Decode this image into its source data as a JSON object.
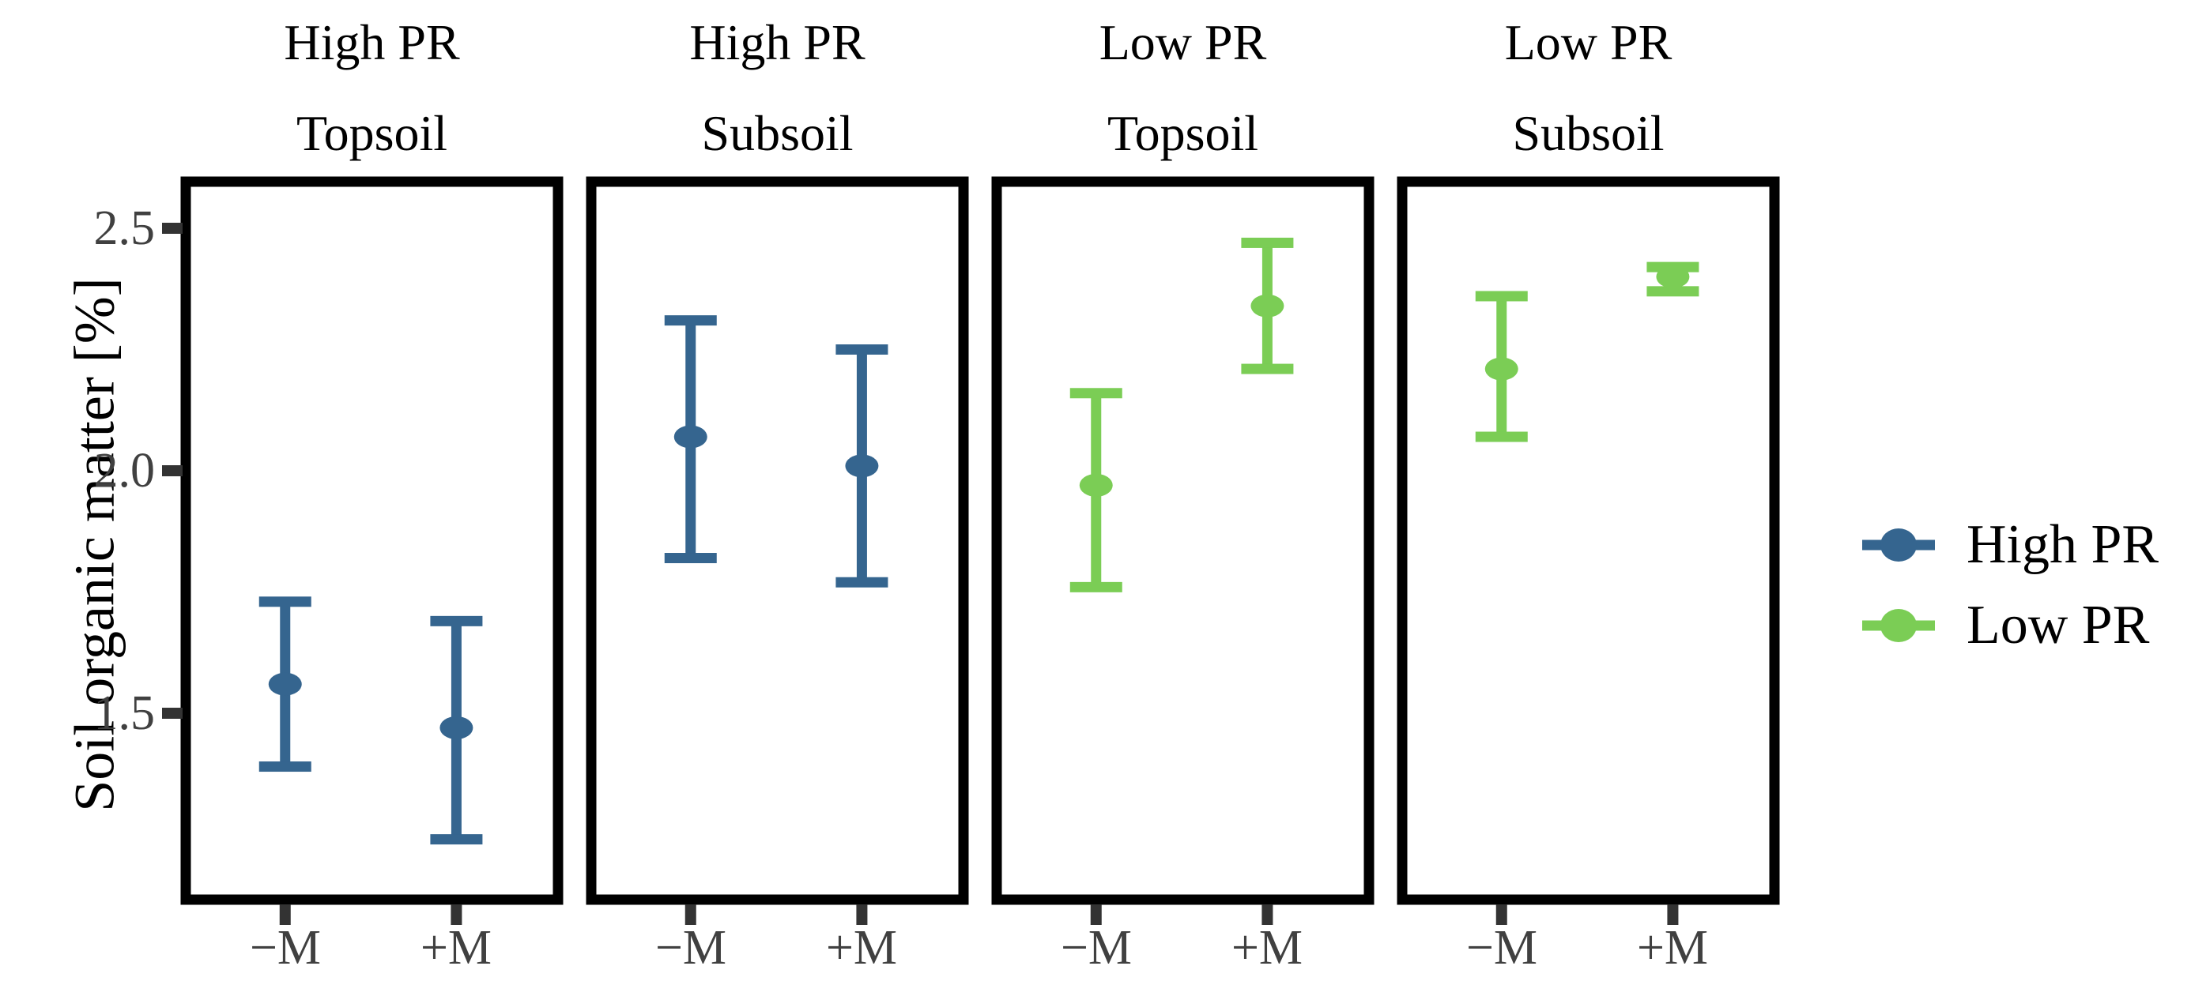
{
  "chart_data": {
    "type": "pointrange",
    "title": "",
    "ylabel": "Soil organic matter [%]",
    "xlabel": "",
    "x_categories": [
      "−M",
      "+M"
    ],
    "y_tick_labels": [
      "2.5",
      "2.0",
      "1.5"
    ],
    "y_tick_values": [
      2.5,
      2.0,
      1.5
    ],
    "ylim": [
      1.11,
      2.6
    ],
    "grid": "off",
    "legend_position": "right",
    "axis_text_color": "#404040",
    "tick_mark_color": "#333333",
    "panel_border_color": "#000000",
    "series_colors": {
      "high_pr": "#35658F",
      "low_pr": "#7BCD55"
    },
    "panels": [
      {
        "id": "high-pr-topsoil",
        "facet_line1": "High PR",
        "facet_line2": "Topsoil",
        "series": "High PR",
        "color": "#35658F",
        "points": [
          {
            "x": "−M",
            "y": 1.56,
            "ymin": 1.39,
            "ymax": 1.73
          },
          {
            "x": "+M",
            "y": 1.47,
            "ymin": 1.24,
            "ymax": 1.69
          }
        ]
      },
      {
        "id": "high-pr-subsoil",
        "facet_line1": "High PR",
        "facet_line2": "Subsoil",
        "series": "High PR",
        "color": "#35658F",
        "points": [
          {
            "x": "−M",
            "y": 2.07,
            "ymin": 1.82,
            "ymax": 2.31
          },
          {
            "x": "+M",
            "y": 2.01,
            "ymin": 1.77,
            "ymax": 2.25
          }
        ]
      },
      {
        "id": "low-pr-topsoil",
        "facet_line1": "Low PR",
        "facet_line2": "Topsoil",
        "series": "Low PR",
        "color": "#7BCD55",
        "points": [
          {
            "x": "−M",
            "y": 1.97,
            "ymin": 1.76,
            "ymax": 2.16
          },
          {
            "x": "+M",
            "y": 2.34,
            "ymin": 2.21,
            "ymax": 2.47
          }
        ]
      },
      {
        "id": "low-pr-subsoil",
        "facet_line1": "Low PR",
        "facet_line2": "Subsoil",
        "series": "Low PR",
        "color": "#7BCD55",
        "points": [
          {
            "x": "−M",
            "y": 2.21,
            "ymin": 2.07,
            "ymax": 2.36
          },
          {
            "x": "+M",
            "y": 2.4,
            "ymin": 2.37,
            "ymax": 2.42
          }
        ]
      }
    ],
    "legend": [
      {
        "label": "High PR",
        "color": "#35658F"
      },
      {
        "label": "Low PR",
        "color": "#7BCD55"
      }
    ]
  }
}
